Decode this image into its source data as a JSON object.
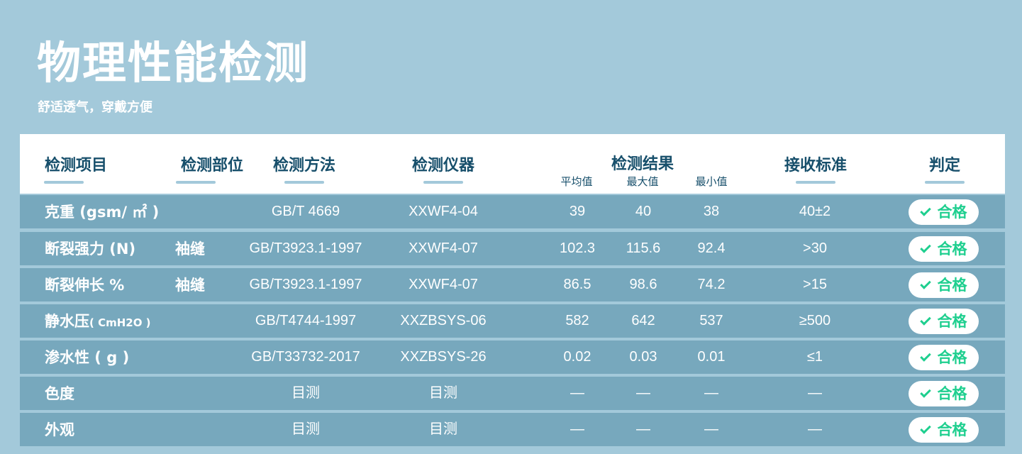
{
  "title": "物理性能检测",
  "subtitle": "舒适透气，穿戴方便",
  "headers": {
    "item": "检测项目",
    "part": "检测部位",
    "method": "检测方法",
    "instrument": "检测仪器",
    "result": "检测结果",
    "avg": "平均值",
    "max": "最大值",
    "min": "最小值",
    "standard": "接收标准",
    "verdict": "判定"
  },
  "colors": {
    "background": "#a3c9da",
    "row": "#77a8bd",
    "header_text": "#174f6b",
    "pass": "#1fcf8f"
  },
  "rows": [
    {
      "name": "克重 (gsm/ ㎡ )",
      "part": "",
      "method": "GB/T 4669",
      "instrument": "XXWF4-04",
      "avg": "39",
      "max": "40",
      "min": "38",
      "standard": "40±2",
      "verdict": "合格"
    },
    {
      "name": "断裂强力 (N)",
      "part": "袖缝",
      "method": "GB/T3923.1-1997",
      "instrument": "XXWF4-07",
      "avg": "102.3",
      "max": "115.6",
      "min": "92.4",
      "standard": ">30",
      "verdict": "合格"
    },
    {
      "name": "断裂伸长 %",
      "part": "袖缝",
      "method": "GB/T3923.1-1997",
      "instrument": "XXWF4-07",
      "avg": "86.5",
      "max": "98.6",
      "min": "74.2",
      "standard": ">15",
      "verdict": "合格"
    },
    {
      "name": "静水压",
      "name_unit": "( CmH2O )",
      "part": "",
      "method": "GB/T4744-1997",
      "instrument": "XXZBSYS-06",
      "avg": "582",
      "max": "642",
      "min": "537",
      "standard": "≥500",
      "verdict": "合格"
    },
    {
      "name": "渗水性 ( g )",
      "part": "",
      "method": "GB/T33732-2017",
      "instrument": "XXZBSYS-26",
      "avg": "0.02",
      "max": "0.03",
      "min": "0.01",
      "standard": "≤1",
      "verdict": "合格"
    },
    {
      "name": "色度",
      "part": "",
      "method": "目测",
      "instrument": "目测",
      "avg": "—",
      "max": "—",
      "min": "—",
      "standard": "—",
      "verdict": "合格"
    },
    {
      "name": "外观",
      "part": "",
      "method": "目测",
      "instrument": "目测",
      "avg": "—",
      "max": "—",
      "min": "—",
      "standard": "—",
      "verdict": "合格"
    }
  ]
}
